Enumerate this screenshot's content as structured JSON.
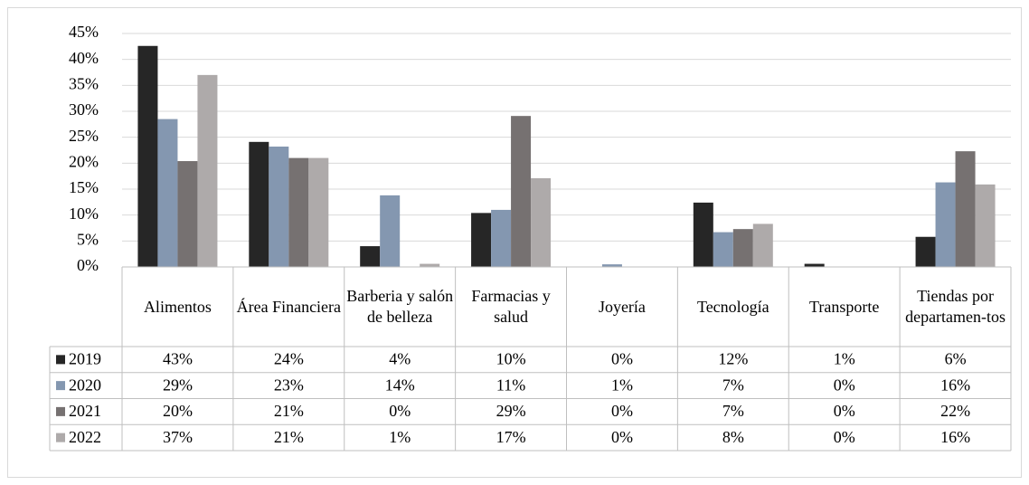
{
  "chart_data": {
    "type": "bar",
    "categories": [
      "Alimentos",
      "Área Financiera",
      "Barberia y salón de belleza",
      "Farmacias y salud",
      "Joyería",
      "Tecnología",
      "Transporte",
      "Tiendas por departamen-tos"
    ],
    "series": [
      {
        "name": "2019",
        "color": "#262626",
        "values": [
          42.6,
          24.1,
          4.0,
          10.4,
          0,
          12.4,
          0.6,
          5.8
        ],
        "value_labels": [
          "43%",
          "24%",
          "4%",
          "10%",
          "0%",
          "12%",
          "1%",
          "6%"
        ]
      },
      {
        "name": "2020",
        "color": "#8497b0",
        "values": [
          28.5,
          23.2,
          13.8,
          11.0,
          0.5,
          6.7,
          0,
          16.3
        ],
        "value_labels": [
          "29%",
          "23%",
          "14%",
          "11%",
          "1%",
          "7%",
          "0%",
          "16%"
        ]
      },
      {
        "name": "2021",
        "color": "#767171",
        "values": [
          20.4,
          21.0,
          0,
          29.1,
          0,
          7.3,
          0,
          22.3
        ],
        "value_labels": [
          "20%",
          "21%",
          "0%",
          "29%",
          "0%",
          "7%",
          "0%",
          "22%"
        ]
      },
      {
        "name": "2022",
        "color": "#aeaaaa",
        "values": [
          37.0,
          21.0,
          0.6,
          17.1,
          0,
          8.3,
          0,
          15.9
        ],
        "value_labels": [
          "37%",
          "21%",
          "1%",
          "17%",
          "0%",
          "8%",
          "0%",
          "16%"
        ]
      }
    ],
    "ylim": [
      0,
      45
    ],
    "yticks": [
      {
        "value": 0,
        "label": "0%"
      },
      {
        "value": 5,
        "label": "5%"
      },
      {
        "value": 10,
        "label": "10%"
      },
      {
        "value": 15,
        "label": "15%"
      },
      {
        "value": 20,
        "label": "20%"
      },
      {
        "value": 25,
        "label": "25%"
      },
      {
        "value": 30,
        "label": "30%"
      },
      {
        "value": 35,
        "label": "35%"
      },
      {
        "value": 40,
        "label": "40%"
      },
      {
        "value": 45,
        "label": "45%"
      }
    ],
    "grid": true
  }
}
